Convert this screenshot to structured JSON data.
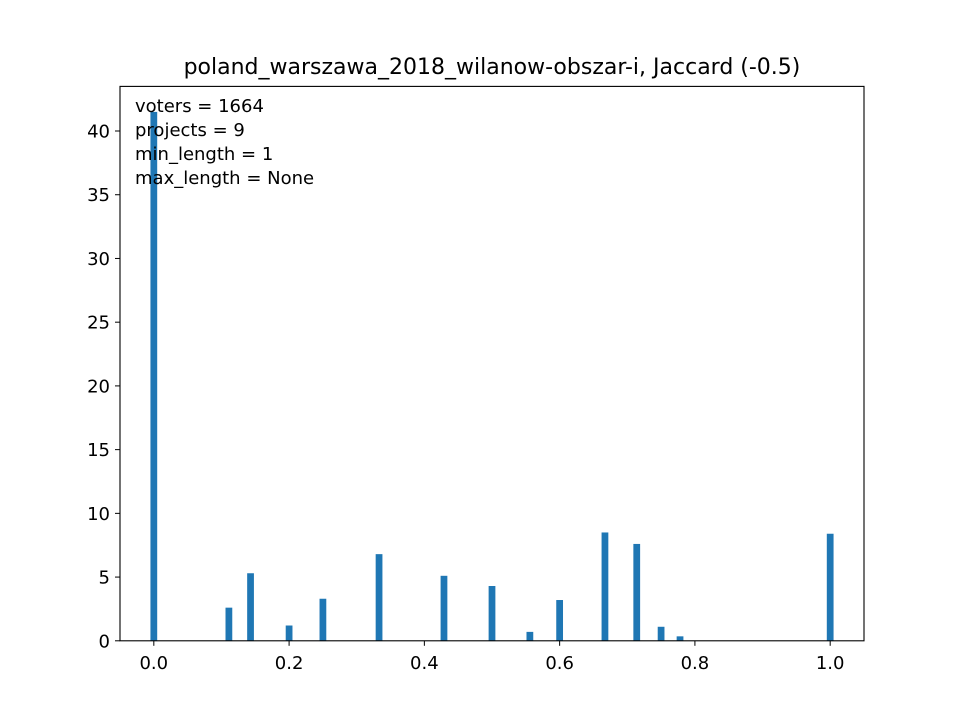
{
  "chart_data": {
    "type": "bar",
    "title": "poland_warszawa_2018_wilanow-obszar-i, Jaccard (-0.5)",
    "xlabel": "",
    "ylabel": "",
    "xlim": [
      -0.05,
      1.05
    ],
    "ylim": [
      0,
      43.5
    ],
    "bar_width": 0.01,
    "bar_color": "#1f77b4",
    "grid": false,
    "x_ticks": [
      0.0,
      0.2,
      0.4,
      0.6,
      0.8,
      1.0
    ],
    "x_tick_labels": [
      "0.0",
      "0.2",
      "0.4",
      "0.6",
      "0.8",
      "1.0"
    ],
    "y_ticks": [
      0,
      5,
      10,
      15,
      20,
      25,
      30,
      35,
      40
    ],
    "y_tick_labels": [
      "0",
      "5",
      "10",
      "15",
      "20",
      "25",
      "30",
      "35",
      "40"
    ],
    "annotations": [
      "voters = 1664",
      "projects = 9",
      "min_length = 1",
      "max_length = None"
    ],
    "x": [
      0.0,
      0.111,
      0.143,
      0.2,
      0.25,
      0.333,
      0.429,
      0.5,
      0.556,
      0.6,
      0.667,
      0.714,
      0.75,
      0.778,
      1.0
    ],
    "values": [
      41.5,
      2.6,
      5.3,
      1.2,
      3.3,
      6.8,
      5.1,
      4.3,
      0.7,
      3.2,
      8.5,
      7.6,
      1.1,
      0.35,
      8.4
    ]
  }
}
